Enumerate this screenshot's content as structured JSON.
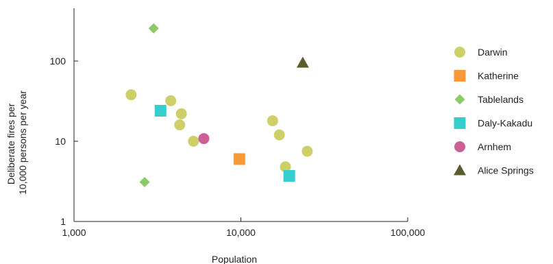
{
  "chart_data": {
    "type": "scatter",
    "title": "",
    "xlabel": "Population",
    "ylabel_lines": [
      "Deliberate fires per",
      "10,000 persons per year"
    ],
    "x_scale": "log",
    "y_scale": "log",
    "xlim": [
      1000,
      100000
    ],
    "ylim": [
      1,
      500
    ],
    "x_ticks": [
      {
        "value": 1000,
        "label": "1,000"
      },
      {
        "value": 10000,
        "label": "10,000"
      },
      {
        "value": 100000,
        "label": "100,000"
      }
    ],
    "y_ticks": [
      {
        "value": 1,
        "label": "1"
      },
      {
        "value": 10,
        "label": "10"
      },
      {
        "value": 100,
        "label": "100"
      }
    ],
    "grid": false,
    "legend_position": "right",
    "series": [
      {
        "name": "Darwin",
        "marker": "circle",
        "color": "#cfcf6a",
        "points": [
          {
            "x": 2200,
            "y": 38
          },
          {
            "x": 3800,
            "y": 32
          },
          {
            "x": 4400,
            "y": 22
          },
          {
            "x": 4300,
            "y": 16
          },
          {
            "x": 5200,
            "y": 10
          },
          {
            "x": 15500,
            "y": 18
          },
          {
            "x": 17000,
            "y": 12
          },
          {
            "x": 18500,
            "y": 4.8
          },
          {
            "x": 25000,
            "y": 7.5
          }
        ]
      },
      {
        "name": "Katherine",
        "marker": "square",
        "color": "#f99a38",
        "points": [
          {
            "x": 9800,
            "y": 6
          }
        ]
      },
      {
        "name": "Tablelands",
        "marker": "diamond",
        "color": "#8dc86b",
        "points": [
          {
            "x": 3000,
            "y": 255
          },
          {
            "x": 2650,
            "y": 3.1
          }
        ]
      },
      {
        "name": "Daly-Kakadu",
        "marker": "square",
        "color": "#35cdcd",
        "points": [
          {
            "x": 3300,
            "y": 24
          },
          {
            "x": 19500,
            "y": 3.7
          }
        ]
      },
      {
        "name": "Arnhem",
        "marker": "circle",
        "color": "#cc5f97",
        "points": [
          {
            "x": 6000,
            "y": 10.8
          }
        ]
      },
      {
        "name": "Alice Springs",
        "marker": "triangle",
        "color": "#5a5c2b",
        "points": [
          {
            "x": 23500,
            "y": 95
          }
        ]
      }
    ]
  }
}
